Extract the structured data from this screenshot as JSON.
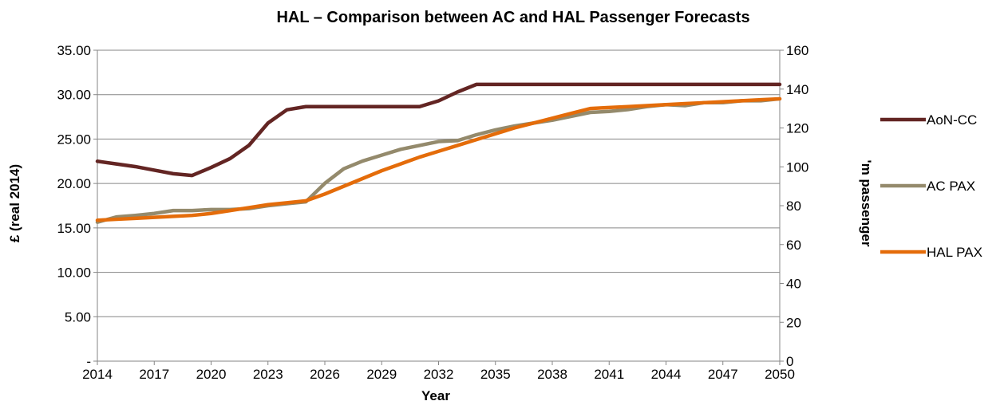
{
  "chart_data": {
    "type": "line",
    "title": "HAL – Comparison between AC and HAL Passenger Forecasts",
    "xlabel": "Year",
    "ylabel": "£ (real 2014)",
    "y2label": "'m passenger",
    "x": [
      2014,
      2015,
      2016,
      2017,
      2018,
      2019,
      2020,
      2021,
      2022,
      2023,
      2024,
      2025,
      2026,
      2027,
      2028,
      2029,
      2030,
      2031,
      2032,
      2033,
      2034,
      2035,
      2036,
      2037,
      2038,
      2039,
      2040,
      2041,
      2042,
      2043,
      2044,
      2045,
      2046,
      2047,
      2048,
      2049,
      2050
    ],
    "xticks": [
      "2014",
      "2017",
      "2020",
      "2023",
      "2026",
      "2029",
      "2032",
      "2035",
      "2038",
      "2041",
      "2044",
      "2047",
      "2050"
    ],
    "ylim": [
      0,
      35
    ],
    "yticks": [
      "-",
      "5.00",
      "10.00",
      "15.00",
      "20.00",
      "25.00",
      "30.00",
      "35.00"
    ],
    "y2lim": [
      0,
      160
    ],
    "y2ticks": [
      "0",
      "20",
      "40",
      "60",
      "80",
      "100",
      "120",
      "140",
      "160"
    ],
    "grid": "horizontal",
    "legend_position": "right",
    "series": [
      {
        "name": "AoN-CC",
        "axis": "left",
        "color": "#632523",
        "values": [
          22.5,
          22.2,
          21.9,
          21.5,
          21.1,
          20.9,
          21.8,
          22.8,
          24.3,
          26.8,
          28.3,
          28.65,
          28.65,
          28.65,
          28.65,
          28.65,
          28.65,
          28.65,
          29.3,
          30.3,
          31.15,
          31.15,
          31.15,
          31.15,
          31.15,
          31.15,
          31.15,
          31.15,
          31.15,
          31.15,
          31.15,
          31.15,
          31.15,
          31.15,
          31.15,
          31.15,
          31.15
        ]
      },
      {
        "name": "AC PAX",
        "axis": "right",
        "color": "#948a6c",
        "values": [
          71.5,
          74.2,
          75,
          76,
          77.5,
          77.5,
          78,
          78,
          78.5,
          80,
          81,
          82,
          91.5,
          99,
          103,
          106,
          109,
          111,
          113,
          113.5,
          116.5,
          119,
          121,
          122.5,
          124,
          126,
          128,
          128.5,
          129.5,
          131,
          132,
          131.5,
          133,
          133,
          134,
          134,
          135
        ]
      },
      {
        "name": "HAL PAX",
        "axis": "right",
        "color": "#e46c0a",
        "values": [
          72.5,
          73,
          73.5,
          74,
          74.5,
          75,
          76,
          77.5,
          79,
          80.5,
          81.5,
          82.5,
          86,
          90,
          94,
          98,
          101.5,
          105,
          108,
          111,
          114,
          117,
          120,
          122.5,
          125,
          127.5,
          130,
          130.5,
          131,
          131.5,
          132,
          132.5,
          133,
          133.5,
          134,
          134.5,
          135
        ]
      }
    ]
  }
}
